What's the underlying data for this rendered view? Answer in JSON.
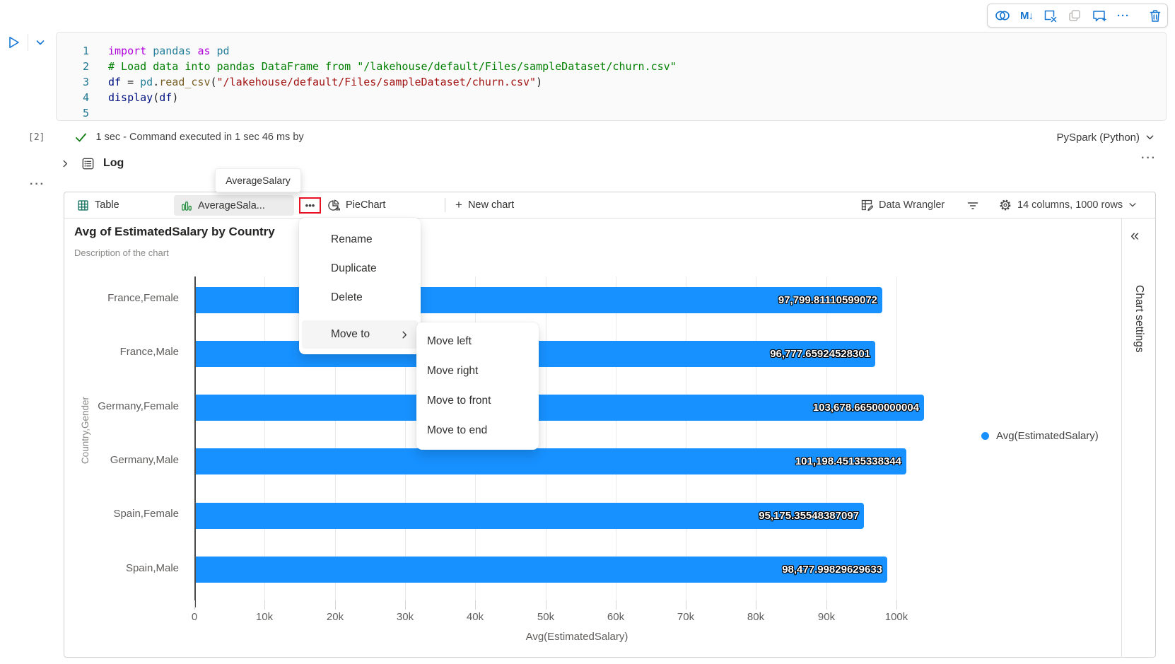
{
  "cell_toolbar": {
    "icons": [
      "copilot-icon",
      "convert-to-markdown-icon",
      "clear-outputs-icon",
      "copy-cell-icon",
      "add-comment-icon",
      "more-options-icon",
      "delete-cell-icon"
    ],
    "markdown_glyph": "M↓",
    "more_glyph": "···"
  },
  "glyphs": {
    "more_dots": "···",
    "tab_more_dots": "•••",
    "collapse_double_chevron": "«",
    "plus": "+"
  },
  "code_cell": {
    "lines": [
      {
        "n": "1",
        "tokens": [
          [
            "import",
            "kw"
          ],
          [
            " ",
            "pl"
          ],
          [
            "pandas",
            "mod"
          ],
          [
            " ",
            "pl"
          ],
          [
            "as",
            "kw"
          ],
          [
            " ",
            "pl"
          ],
          [
            "pd",
            "mod"
          ]
        ]
      },
      {
        "n": "2",
        "tokens": [
          [
            "# Load data into pandas DataFrame from \"/lakehouse/default/Files/sampleDataset/churn.csv\"",
            "cm"
          ]
        ]
      },
      {
        "n": "3",
        "tokens": [
          [
            "df",
            "var"
          ],
          [
            " = ",
            "pl"
          ],
          [
            "pd",
            "mod"
          ],
          [
            ".",
            "pl"
          ],
          [
            "read_csv",
            "fn"
          ],
          [
            "(",
            "pl"
          ],
          [
            "\"/lakehouse/default/Files/sampleDataset/churn.csv\"",
            "str"
          ],
          [
            ")",
            "pl"
          ]
        ]
      },
      {
        "n": "4",
        "tokens": [
          [
            "display",
            "var"
          ],
          [
            "(",
            "pl"
          ],
          [
            "df",
            "var"
          ],
          [
            ")",
            "pl"
          ]
        ]
      },
      {
        "n": "5",
        "tokens": []
      }
    ]
  },
  "status_bar": {
    "execution_count": "[2]",
    "status_text": "1 sec - Command executed in 1 sec 46 ms by",
    "kernel": "PySpark (Python)"
  },
  "log_section": {
    "label": "Log"
  },
  "tooltip": {
    "text": "AverageSalary"
  },
  "tab_bar": {
    "table": "Table",
    "chart_tab": "AverageSala...",
    "pie": "PieChart",
    "new_chart": "New chart",
    "data_wrangler": "Data Wrangler",
    "dataset_info": "14 columns, 1000 rows"
  },
  "context_menu": {
    "items": [
      "Rename",
      "Duplicate",
      "Delete"
    ],
    "move_to": "Move to",
    "submenu": [
      "Move left",
      "Move right",
      "Move to front",
      "Move to end"
    ]
  },
  "side_panel": {
    "label": "Chart settings"
  },
  "chart_data": {
    "type": "bar",
    "orientation": "horizontal",
    "title": "Avg of EstimatedSalary by Country",
    "subtitle": "Description of the chart",
    "categories": [
      "France,Female",
      "France,Male",
      "Germany,Female",
      "Germany,Male",
      "Spain,Female",
      "Spain,Male"
    ],
    "values": [
      97799.81110599072,
      96777.65924528301,
      103678.66500000004,
      101198.45135338344,
      95175.35548387097,
      98477.99829629633
    ],
    "value_labels": [
      "97,799.81110599072",
      "96,777.65924528301",
      "103,678.66500000004",
      "101,198.45135338344",
      "95,175.35548387097",
      "98,477.99829629633"
    ],
    "xlabel": "Avg(EstimatedSalary)",
    "ylabel": "Country,Gender",
    "xlim": [
      0,
      100000
    ],
    "x_ticks": {
      "values": [
        0,
        10000,
        20000,
        30000,
        40000,
        50000,
        60000,
        70000,
        80000,
        90000,
        100000
      ],
      "labels": [
        "0",
        "10k",
        "20k",
        "30k",
        "40k",
        "50k",
        "60k",
        "70k",
        "80k",
        "90k",
        "100k"
      ]
    },
    "legend": {
      "label": "Avg(EstimatedSalary)",
      "position": "right"
    },
    "grid": true,
    "bar_color": "#1791FF"
  },
  "colors": {
    "bar": "#1791FF",
    "accent_blue": "#1676D2",
    "highlight_red": "#E81123",
    "check_green": "#107C10"
  }
}
